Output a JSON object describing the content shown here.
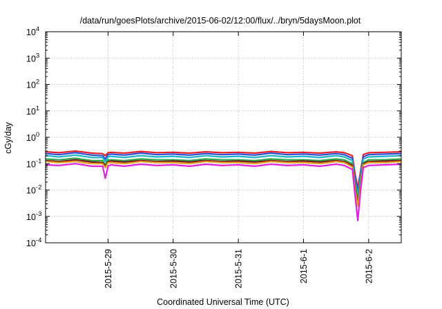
{
  "chart_data": {
    "type": "line",
    "title": "/data/run/goesPlots/archive/2015-06-02/12:00/flux/../bryn/5daysMoon.plot",
    "xlabel": "Coordinated Universal Time (UTC)",
    "ylabel": "cGy/day",
    "yscale": "log",
    "ylim": [
      0.0001,
      10000
    ],
    "y_ticks": [
      {
        "value": 0.0001,
        "base": "10",
        "exp": "-4"
      },
      {
        "value": 0.001,
        "base": "10",
        "exp": "-3"
      },
      {
        "value": 0.01,
        "base": "10",
        "exp": "-2"
      },
      {
        "value": 0.1,
        "base": "10",
        "exp": "-1"
      },
      {
        "value": 1,
        "base": "10",
        "exp": "0"
      },
      {
        "value": 10,
        "base": "10",
        "exp": "1"
      },
      {
        "value": 100,
        "base": "10",
        "exp": "2"
      },
      {
        "value": 1000,
        "base": "10",
        "exp": "3"
      },
      {
        "value": 10000,
        "base": "10",
        "exp": "4"
      }
    ],
    "xlim": [
      "2015-05-28 01:00",
      "2015-06-02 12:00"
    ],
    "x_ticks": [
      "2015-5-29",
      "2015-5-30",
      "2015-5-31",
      "2015-6-1",
      "2015-6-2"
    ],
    "grid": true,
    "legend": "none",
    "x": [
      "2015-05-28 01:00",
      "2015-05-28 06:00",
      "2015-05-28 12:00",
      "2015-05-28 18:00",
      "2015-05-28 22:00",
      "2015-05-28 23:00",
      "2015-05-29 00:00",
      "2015-05-29 01:00",
      "2015-05-29 06:00",
      "2015-05-29 12:00",
      "2015-05-29 18:00",
      "2015-05-30 00:00",
      "2015-05-30 06:00",
      "2015-05-30 12:00",
      "2015-05-30 18:00",
      "2015-05-31 00:00",
      "2015-05-31 06:00",
      "2015-05-31 12:00",
      "2015-05-31 18:00",
      "2015-06-01 00:00",
      "2015-06-01 06:00",
      "2015-06-01 12:00",
      "2015-06-01 15:00",
      "2015-06-01 18:00",
      "2015-06-01 19:00",
      "2015-06-01 20:00",
      "2015-06-01 21:00",
      "2015-06-01 22:00",
      "2015-06-02 00:00",
      "2015-06-02 06:00",
      "2015-06-02 12:00"
    ],
    "series": [
      {
        "color": "#e5202a",
        "values": [
          0.28,
          0.26,
          0.3,
          0.25,
          0.24,
          0.2,
          0.26,
          0.27,
          0.25,
          0.29,
          0.26,
          0.27,
          0.25,
          0.28,
          0.26,
          0.27,
          0.25,
          0.29,
          0.26,
          0.27,
          0.25,
          0.28,
          0.26,
          0.2,
          0.04,
          0.012,
          0.05,
          0.22,
          0.26,
          0.27,
          0.28
        ]
      },
      {
        "color": "#2a4fd6",
        "values": [
          0.24,
          0.22,
          0.26,
          0.21,
          0.2,
          0.15,
          0.22,
          0.23,
          0.21,
          0.25,
          0.22,
          0.23,
          0.21,
          0.24,
          0.22,
          0.23,
          0.21,
          0.25,
          0.22,
          0.23,
          0.21,
          0.24,
          0.22,
          0.16,
          0.03,
          0.008,
          0.04,
          0.18,
          0.22,
          0.23,
          0.24
        ]
      },
      {
        "color": "#1bb3c9",
        "values": [
          0.2,
          0.18,
          0.21,
          0.17,
          0.17,
          0.12,
          0.18,
          0.19,
          0.17,
          0.2,
          0.18,
          0.19,
          0.17,
          0.2,
          0.18,
          0.19,
          0.17,
          0.2,
          0.18,
          0.19,
          0.17,
          0.2,
          0.18,
          0.13,
          0.02,
          0.006,
          0.03,
          0.15,
          0.18,
          0.19,
          0.2
        ]
      },
      {
        "color": "#2aa84a",
        "values": [
          0.15,
          0.14,
          0.16,
          0.13,
          0.13,
          0.09,
          0.14,
          0.14,
          0.13,
          0.15,
          0.14,
          0.14,
          0.13,
          0.15,
          0.14,
          0.14,
          0.13,
          0.15,
          0.14,
          0.14,
          0.13,
          0.15,
          0.14,
          0.1,
          0.015,
          0.004,
          0.02,
          0.11,
          0.14,
          0.14,
          0.15
        ]
      },
      {
        "color": "#7a1a1a",
        "values": [
          0.13,
          0.12,
          0.14,
          0.115,
          0.11,
          0.08,
          0.12,
          0.125,
          0.115,
          0.13,
          0.12,
          0.125,
          0.115,
          0.13,
          0.12,
          0.125,
          0.115,
          0.13,
          0.12,
          0.125,
          0.115,
          0.13,
          0.12,
          0.085,
          0.012,
          0.003,
          0.016,
          0.1,
          0.12,
          0.125,
          0.13
        ]
      },
      {
        "color": "#e6a020",
        "values": [
          0.12,
          0.11,
          0.12,
          0.1,
          0.1,
          0.07,
          0.11,
          0.11,
          0.1,
          0.12,
          0.11,
          0.11,
          0.1,
          0.12,
          0.11,
          0.11,
          0.1,
          0.12,
          0.11,
          0.11,
          0.1,
          0.12,
          0.11,
          0.075,
          0.01,
          0.0025,
          0.014,
          0.09,
          0.11,
          0.11,
          0.12
        ]
      },
      {
        "color": "#e020e0",
        "values": [
          0.09,
          0.085,
          0.1,
          0.08,
          0.08,
          0.028,
          0.08,
          0.09,
          0.08,
          0.095,
          0.085,
          0.09,
          0.08,
          0.095,
          0.085,
          0.09,
          0.08,
          0.095,
          0.085,
          0.09,
          0.08,
          0.095,
          0.085,
          0.06,
          0.006,
          0.0007,
          0.009,
          0.07,
          0.085,
          0.09,
          0.095
        ]
      }
    ]
  }
}
